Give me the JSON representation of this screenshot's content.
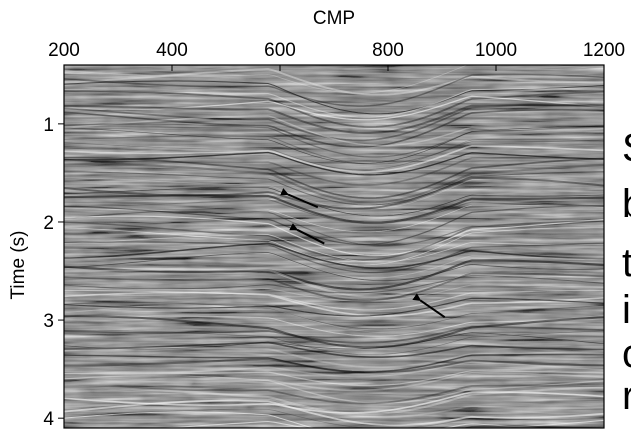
{
  "chart_data": {
    "type": "heatmap",
    "title": "",
    "xlabel": "CMP",
    "ylabel": "Time (s)",
    "x_axis_position": "top",
    "xlim": [
      200,
      1200
    ],
    "ylim": [
      4.1,
      0.4
    ],
    "xticks": [
      200,
      400,
      600,
      800,
      1000,
      1200
    ],
    "yticks": [
      1,
      2,
      3,
      4
    ],
    "colormap": [
      "#000000",
      "#7f7f7f",
      "#ffffff"
    ],
    "annotations": [
      {
        "type": "arrow",
        "from": [
          670,
          1.85
        ],
        "to": [
          615,
          1.72
        ]
      },
      {
        "type": "arrow",
        "from": [
          682,
          2.22
        ],
        "to": [
          632,
          2.08
        ]
      },
      {
        "type": "arrow",
        "from": [
          905,
          2.97
        ],
        "to": [
          860,
          2.8
        ]
      }
    ]
  },
  "side_text": [
    "S",
    "b",
    "t",
    "i",
    "c",
    "r"
  ]
}
